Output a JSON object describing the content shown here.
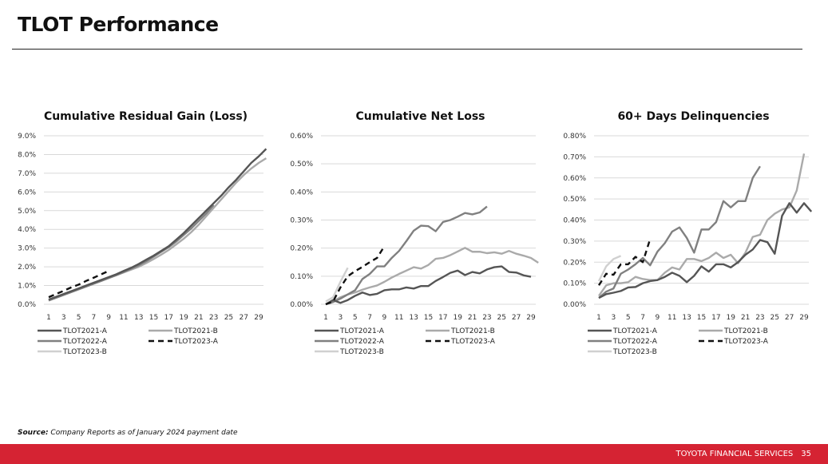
{
  "page": {
    "title": "TLOT Performance",
    "source_label": "Source:",
    "source_text": " Company Reports as of January 2024 payment date",
    "footer_brand": "TOYOTA FINANCIAL SERVICES",
    "page_number": "35",
    "footer_color": "#d52333"
  },
  "chart_data": [
    {
      "type": "line",
      "title": "Cumulative Residual Gain (Loss)",
      "xlabel": "",
      "ylabel": "",
      "ylim": [
        0,
        9
      ],
      "yticks": [
        0,
        1,
        2,
        3,
        4,
        5,
        6,
        7,
        8,
        9
      ],
      "ytick_labels": [
        "0.0%",
        "1.0%",
        "2.0%",
        "3.0%",
        "4.0%",
        "5.0%",
        "6.0%",
        "7.0%",
        "8.0%",
        "9.0%"
      ],
      "xticks": [
        1,
        3,
        5,
        7,
        9,
        11,
        13,
        15,
        17,
        19,
        21,
        23,
        25,
        27,
        29
      ],
      "xlim": [
        1,
        29
      ],
      "grid": true,
      "legend": "bottom",
      "series": [
        {
          "name": "TLOT2021-A",
          "color": "#555555",
          "dash": false,
          "values": [
            0.25,
            0.4,
            0.55,
            0.7,
            0.85,
            1.0,
            1.15,
            1.3,
            1.45,
            1.6,
            1.78,
            1.95,
            2.15,
            2.38,
            2.6,
            2.85,
            3.1,
            3.45,
            3.8,
            4.2,
            4.6,
            5.0,
            5.4,
            5.8,
            6.25,
            6.65,
            7.1,
            7.55,
            7.9,
            8.3
          ]
        },
        {
          "name": "TLOT2021-B",
          "color": "#aaaaaa",
          "dash": false,
          "values": [
            0.2,
            0.35,
            0.5,
            0.65,
            0.8,
            0.95,
            1.1,
            1.25,
            1.4,
            1.55,
            1.7,
            1.85,
            2.0,
            2.2,
            2.42,
            2.65,
            2.9,
            3.2,
            3.5,
            3.85,
            4.25,
            4.7,
            5.15,
            5.6,
            6.05,
            6.5,
            6.9,
            7.25,
            7.55,
            7.8
          ]
        },
        {
          "name": "TLOT2022-A",
          "color": "#808080",
          "dash": false,
          "values": [
            0.2,
            0.35,
            0.5,
            0.65,
            0.8,
            0.95,
            1.1,
            1.25,
            1.4,
            1.55,
            1.72,
            1.9,
            2.08,
            2.3,
            2.55,
            2.8,
            3.05,
            3.35,
            3.7,
            4.05,
            4.45,
            4.85,
            5.3
          ]
        },
        {
          "name": "TLOT2023-A",
          "color": "#111111",
          "dash": true,
          "values": [
            0.38,
            0.55,
            0.72,
            0.9,
            1.05,
            1.25,
            1.42,
            1.6,
            1.78
          ]
        },
        {
          "name": "TLOT2023-B",
          "color": "#d0d0d0",
          "dash": false,
          "values": [
            0.2,
            0.38,
            0.55,
            0.7
          ]
        }
      ]
    },
    {
      "type": "line",
      "title": "Cumulative Net Loss",
      "xlabel": "",
      "ylabel": "",
      "ylim": [
        0,
        0.6
      ],
      "yticks": [
        0,
        0.1,
        0.2,
        0.3,
        0.4,
        0.5,
        0.6
      ],
      "ytick_labels": [
        "0.00%",
        "0.10%",
        "0.20%",
        "0.30%",
        "0.40%",
        "0.50%",
        "0.60%"
      ],
      "xticks": [
        1,
        3,
        5,
        7,
        9,
        11,
        13,
        15,
        17,
        19,
        21,
        23,
        25,
        27,
        29
      ],
      "xlim": [
        1,
        29
      ],
      "grid": true,
      "legend": "bottom",
      "series": [
        {
          "name": "TLOT2021-A",
          "color": "#555555",
          "dash": false,
          "values": [
            0.0,
            0.015,
            0.005,
            0.015,
            0.03,
            0.042,
            0.033,
            0.037,
            0.05,
            0.053,
            0.053,
            0.06,
            0.056,
            0.065,
            0.065,
            0.083,
            0.097,
            0.112,
            0.12,
            0.104,
            0.115,
            0.11,
            0.124,
            0.132,
            0.135,
            0.115,
            0.113,
            0.103,
            0.098
          ]
        },
        {
          "name": "TLOT2021-B",
          "color": "#aaaaaa",
          "dash": false,
          "values": [
            0.0,
            0.01,
            0.025,
            0.035,
            0.042,
            0.052,
            0.06,
            0.067,
            0.08,
            0.095,
            0.108,
            0.12,
            0.132,
            0.127,
            0.14,
            0.162,
            0.165,
            0.175,
            0.188,
            0.201,
            0.187,
            0.187,
            0.182,
            0.185,
            0.18,
            0.19,
            0.18,
            0.173,
            0.165,
            0.148
          ]
        },
        {
          "name": "TLOT2022-A",
          "color": "#808080",
          "dash": false,
          "values": [
            0.0,
            0.008,
            0.02,
            0.035,
            0.05,
            0.09,
            0.108,
            0.135,
            0.135,
            0.165,
            0.19,
            0.225,
            0.262,
            0.28,
            0.278,
            0.26,
            0.293,
            0.3,
            0.312,
            0.325,
            0.32,
            0.327,
            0.348
          ]
        },
        {
          "name": "TLOT2023-A",
          "color": "#111111",
          "dash": true,
          "values": [
            0.0,
            0.01,
            0.06,
            0.1,
            0.118,
            0.133,
            0.15,
            0.165,
            0.207
          ]
        },
        {
          "name": "TLOT2023-B",
          "color": "#d0d0d0",
          "dash": false,
          "values": [
            0.01,
            0.025,
            0.08,
            0.13
          ]
        }
      ]
    },
    {
      "type": "line",
      "title": "60+ Days Delinquencies",
      "xlabel": "",
      "ylabel": "",
      "ylim": [
        0,
        0.8
      ],
      "yticks": [
        0,
        0.1,
        0.2,
        0.3,
        0.4,
        0.5,
        0.6,
        0.7,
        0.8
      ],
      "ytick_labels": [
        "0.00%",
        "0.10%",
        "0.20%",
        "0.30%",
        "0.40%",
        "0.50%",
        "0.60%",
        "0.70%",
        "0.80%"
      ],
      "xticks": [
        1,
        3,
        5,
        7,
        9,
        11,
        13,
        15,
        17,
        19,
        21,
        23,
        25,
        27,
        29
      ],
      "xlim": [
        1,
        29
      ],
      "grid": true,
      "legend": "bottom",
      "series": [
        {
          "name": "TLOT2021-A",
          "color": "#555555",
          "dash": false,
          "values": [
            0.03,
            0.048,
            0.055,
            0.063,
            0.08,
            0.082,
            0.1,
            0.11,
            0.115,
            0.13,
            0.15,
            0.135,
            0.105,
            0.135,
            0.18,
            0.155,
            0.19,
            0.19,
            0.175,
            0.2,
            0.235,
            0.26,
            0.305,
            0.295,
            0.24,
            0.42,
            0.48,
            0.435,
            0.48,
            0.44
          ]
        },
        {
          "name": "TLOT2021-B",
          "color": "#aaaaaa",
          "dash": false,
          "values": [
            0.04,
            0.09,
            0.1,
            0.1,
            0.105,
            0.13,
            0.12,
            0.115,
            0.115,
            0.15,
            0.175,
            0.165,
            0.215,
            0.215,
            0.205,
            0.22,
            0.245,
            0.22,
            0.235,
            0.195,
            0.245,
            0.32,
            0.33,
            0.4,
            0.43,
            0.45,
            0.46,
            0.54,
            0.715
          ]
        },
        {
          "name": "TLOT2022-A",
          "color": "#808080",
          "dash": false,
          "values": [
            0.03,
            0.06,
            0.075,
            0.145,
            0.165,
            0.19,
            0.22,
            0.185,
            0.25,
            0.29,
            0.345,
            0.365,
            0.315,
            0.245,
            0.355,
            0.355,
            0.39,
            0.49,
            0.46,
            0.49,
            0.49,
            0.6,
            0.655
          ]
        },
        {
          "name": "TLOT2023-A",
          "color": "#111111",
          "dash": true,
          "values": [
            0.09,
            0.145,
            0.14,
            0.19,
            0.19,
            0.225,
            0.2,
            0.31
          ]
        },
        {
          "name": "TLOT2023-B",
          "color": "#d0d0d0",
          "dash": false,
          "values": [
            0.11,
            0.18,
            0.215,
            0.23
          ]
        }
      ]
    }
  ]
}
